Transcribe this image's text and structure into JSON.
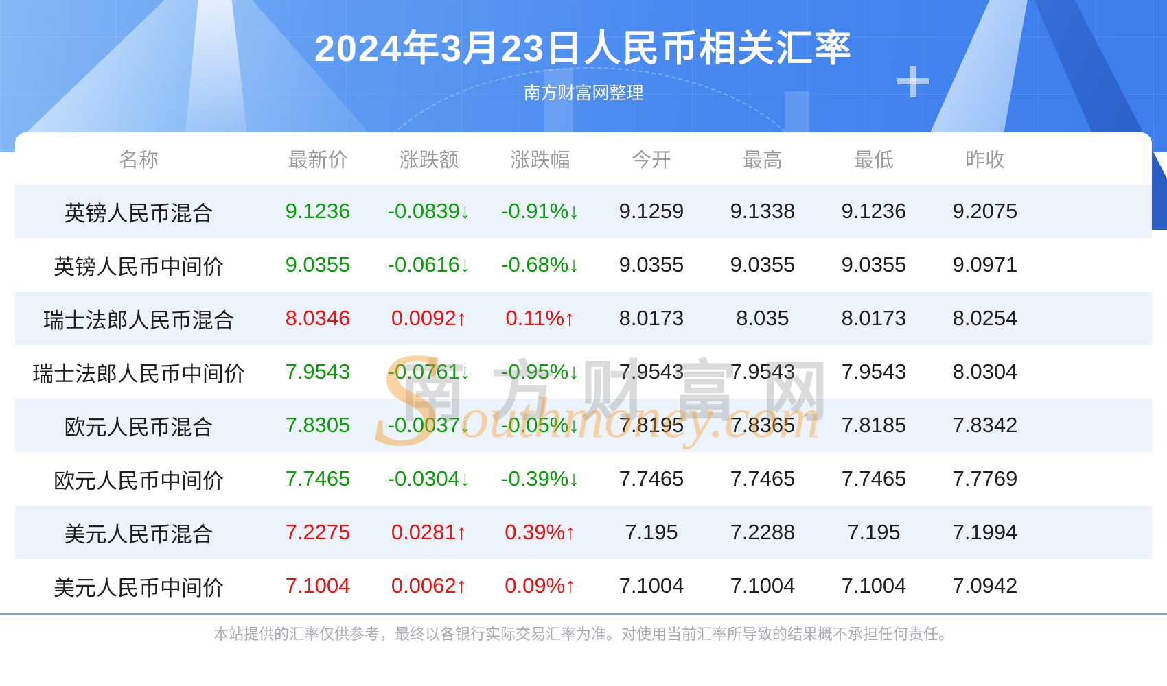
{
  "header": {
    "title": "2024年3月23日人民币相关汇率",
    "subtitle": "南方财富网整理"
  },
  "chart_data": {
    "type": "table",
    "title": "2024年3月23日人民币相关汇率",
    "columns": [
      "名称",
      "最新价",
      "涨跌额",
      "涨跌幅",
      "今开",
      "最高",
      "最低",
      "昨收"
    ],
    "rows": [
      {
        "name": "英镑人民币混合",
        "latest": "9.1236",
        "change": "-0.0839↓",
        "change_pct": "-0.91%↓",
        "open": "9.1259",
        "high": "9.1338",
        "low": "9.1236",
        "prev_close": "9.2075",
        "direction": "down"
      },
      {
        "name": "英镑人民币中间价",
        "latest": "9.0355",
        "change": "-0.0616↓",
        "change_pct": "-0.68%↓",
        "open": "9.0355",
        "high": "9.0355",
        "low": "9.0355",
        "prev_close": "9.0971",
        "direction": "down"
      },
      {
        "name": "瑞士法郎人民币混合",
        "latest": "8.0346",
        "change": "0.0092↑",
        "change_pct": "0.11%↑",
        "open": "8.0173",
        "high": "8.035",
        "low": "8.0173",
        "prev_close": "8.0254",
        "direction": "up"
      },
      {
        "name": "瑞士法郎人民币中间价",
        "latest": "7.9543",
        "change": "-0.0761↓",
        "change_pct": "-0.95%↓",
        "open": "7.9543",
        "high": "7.9543",
        "low": "7.9543",
        "prev_close": "8.0304",
        "direction": "down"
      },
      {
        "name": "欧元人民币混合",
        "latest": "7.8305",
        "change": "-0.0037↓",
        "change_pct": "-0.05%↓",
        "open": "7.8195",
        "high": "7.8365",
        "low": "7.8185",
        "prev_close": "7.8342",
        "direction": "down"
      },
      {
        "name": "欧元人民币中间价",
        "latest": "7.7465",
        "change": "-0.0304↓",
        "change_pct": "-0.39%↓",
        "open": "7.7465",
        "high": "7.7465",
        "low": "7.7465",
        "prev_close": "7.7769",
        "direction": "down"
      },
      {
        "name": "美元人民币混合",
        "latest": "7.2275",
        "change": "0.0281↑",
        "change_pct": "0.39%↑",
        "open": "7.195",
        "high": "7.2288",
        "low": "7.195",
        "prev_close": "7.1994",
        "direction": "up"
      },
      {
        "name": "美元人民币中间价",
        "latest": "7.1004",
        "change": "0.0062↑",
        "change_pct": "0.09%↑",
        "open": "7.1004",
        "high": "7.1004",
        "low": "7.1004",
        "prev_close": "7.0942",
        "direction": "up"
      }
    ]
  },
  "watermark": {
    "cn": "南方财富网",
    "en_initial": "S",
    "en_rest": "outhmoney.com"
  },
  "footer": {
    "disclaimer": "本站提供的汇率仅供参考，最终以各银行实际交易汇率为准。对使用当前汇率所导致的结果概不承担任何责任。"
  },
  "colors": {
    "up_red": "#f60d0d",
    "down_green": "#089e08",
    "banner_blue": "#4687ef",
    "stripe_blue": "#edf3fa",
    "divider_blue_gray": "#87a0bc"
  }
}
